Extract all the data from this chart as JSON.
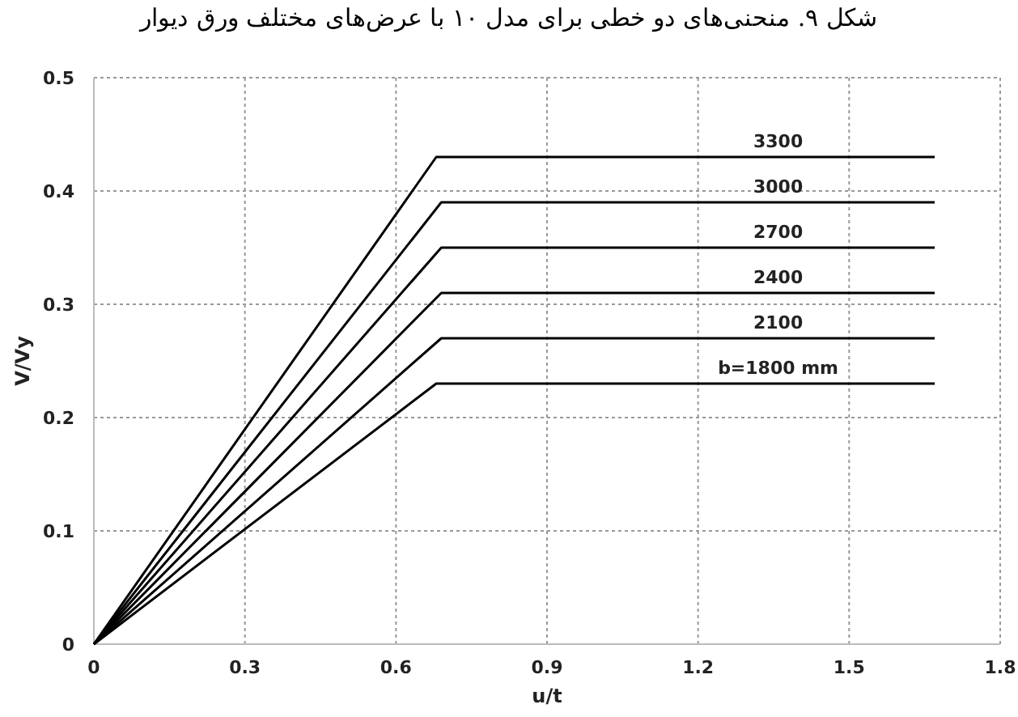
{
  "chart_data": {
    "type": "line",
    "title": "شکل ۹. منحنی‌های دو خطی برای مدل ۱۰ با عرض‌های مختلف ورق دیوار",
    "xlabel": "u/t",
    "ylabel": "V/Vy",
    "xlim": [
      0,
      1.8
    ],
    "xticks": [
      0,
      0.3,
      0.6,
      0.9,
      1.2,
      1.5,
      1.8
    ],
    "ylim": [
      0,
      0.5
    ],
    "yticks": [
      0,
      0.1,
      0.2,
      0.3,
      0.4,
      0.5
    ],
    "grid": true,
    "marker": "none",
    "line_style": "solid",
    "series": [
      {
        "name": "3300",
        "color": "#000000",
        "x": [
          0,
          0.68,
          1.67
        ],
        "values": [
          0,
          0.43,
          0.43
        ]
      },
      {
        "name": "3000",
        "color": "#000000",
        "x": [
          0,
          0.69,
          1.67
        ],
        "values": [
          0,
          0.39,
          0.39
        ]
      },
      {
        "name": "2700",
        "color": "#000000",
        "x": [
          0,
          0.69,
          1.67
        ],
        "values": [
          0,
          0.35,
          0.35
        ]
      },
      {
        "name": "2400",
        "color": "#000000",
        "x": [
          0,
          0.69,
          1.67
        ],
        "values": [
          0,
          0.31,
          0.31
        ]
      },
      {
        "name": "2100",
        "color": "#000000",
        "x": [
          0,
          0.69,
          1.67
        ],
        "values": [
          0,
          0.27,
          0.27
        ]
      },
      {
        "name": "b=1800 mm",
        "color": "#000000",
        "x": [
          0,
          0.68,
          1.67
        ],
        "values": [
          0,
          0.23,
          0.23
        ]
      }
    ]
  }
}
